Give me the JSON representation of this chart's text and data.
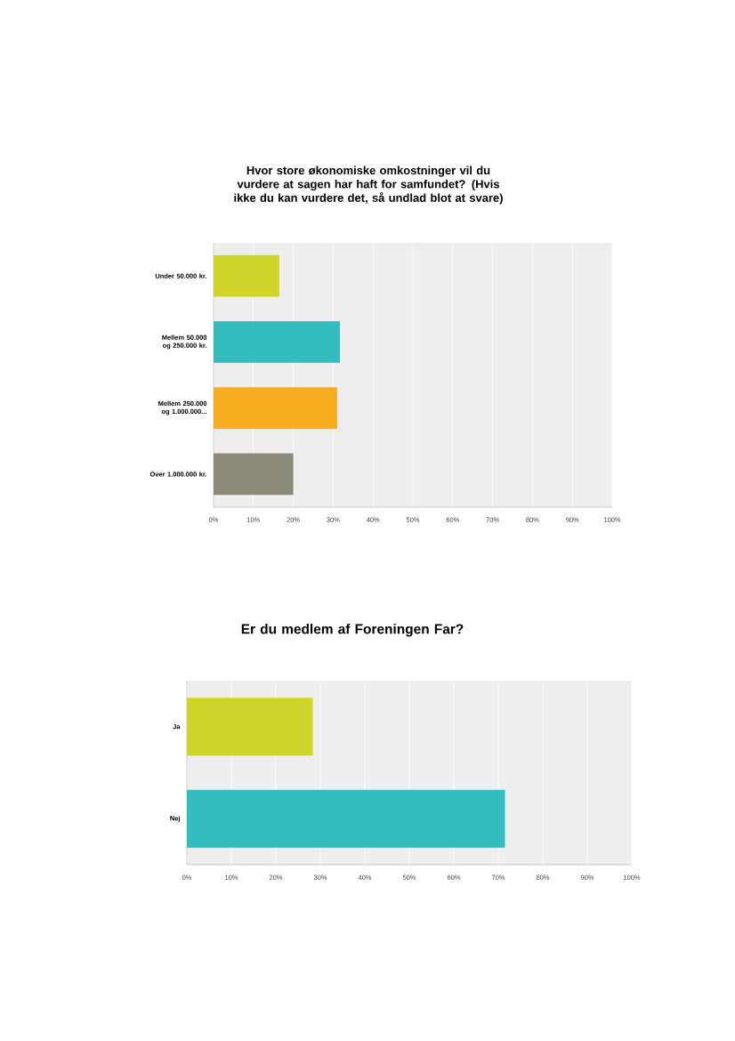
{
  "chart_data": [
    {
      "type": "bar",
      "orientation": "horizontal",
      "title": "Hvor store økonomiske omkostninger vil du vurdere at sagen har haft for samfundet? (Hvis ikke du kan vurdere det, så undlad blot at svare)",
      "categories": [
        "Under 50.000 kr.",
        "Mellem 50.000 og 250.000 kr.",
        "Mellem 250.000 og 1.000.000...",
        "Over 1.000.000 kr."
      ],
      "values": [
        16.5,
        31.7,
        31,
        20
      ],
      "colors": [
        "#cfd427",
        "#33bdbf",
        "#f6ae1e",
        "#898a78"
      ],
      "xlim": [
        0,
        100
      ],
      "xticks": [
        {
          "value": 0,
          "label": "0%"
        },
        {
          "value": 10,
          "label": "10%"
        },
        {
          "value": 20,
          "label": "20%"
        },
        {
          "value": 30,
          "label": "30%"
        },
        {
          "value": 40,
          "label": "40%"
        },
        {
          "value": 50,
          "label": "50%"
        },
        {
          "value": 60,
          "label": "60%"
        },
        {
          "value": 70,
          "label": "70%"
        },
        {
          "value": 80,
          "label": "80%"
        },
        {
          "value": 90,
          "label": "90%"
        },
        {
          "value": 100,
          "label": "100%"
        }
      ],
      "grid": "x"
    },
    {
      "type": "bar",
      "orientation": "horizontal",
      "title": "Er du medlem af Foreningen Far?",
      "categories": [
        "Ja",
        "Nej"
      ],
      "values": [
        28.3,
        71.5
      ],
      "colors": [
        "#cfd427",
        "#33bdbf"
      ],
      "xlim": [
        0,
        100
      ],
      "xticks": [
        {
          "value": 0,
          "label": "0%"
        },
        {
          "value": 10,
          "label": "10%"
        },
        {
          "value": 20,
          "label": "20%"
        },
        {
          "value": 30,
          "label": "30%"
        },
        {
          "value": 40,
          "label": "40%"
        },
        {
          "value": 50,
          "label": "50%"
        },
        {
          "value": 60,
          "label": "60%"
        },
        {
          "value": 70,
          "label": "70%"
        },
        {
          "value": 80,
          "label": "80%"
        },
        {
          "value": 90,
          "label": "90%"
        },
        {
          "value": 100,
          "label": "100%"
        }
      ],
      "grid": "x"
    }
  ]
}
